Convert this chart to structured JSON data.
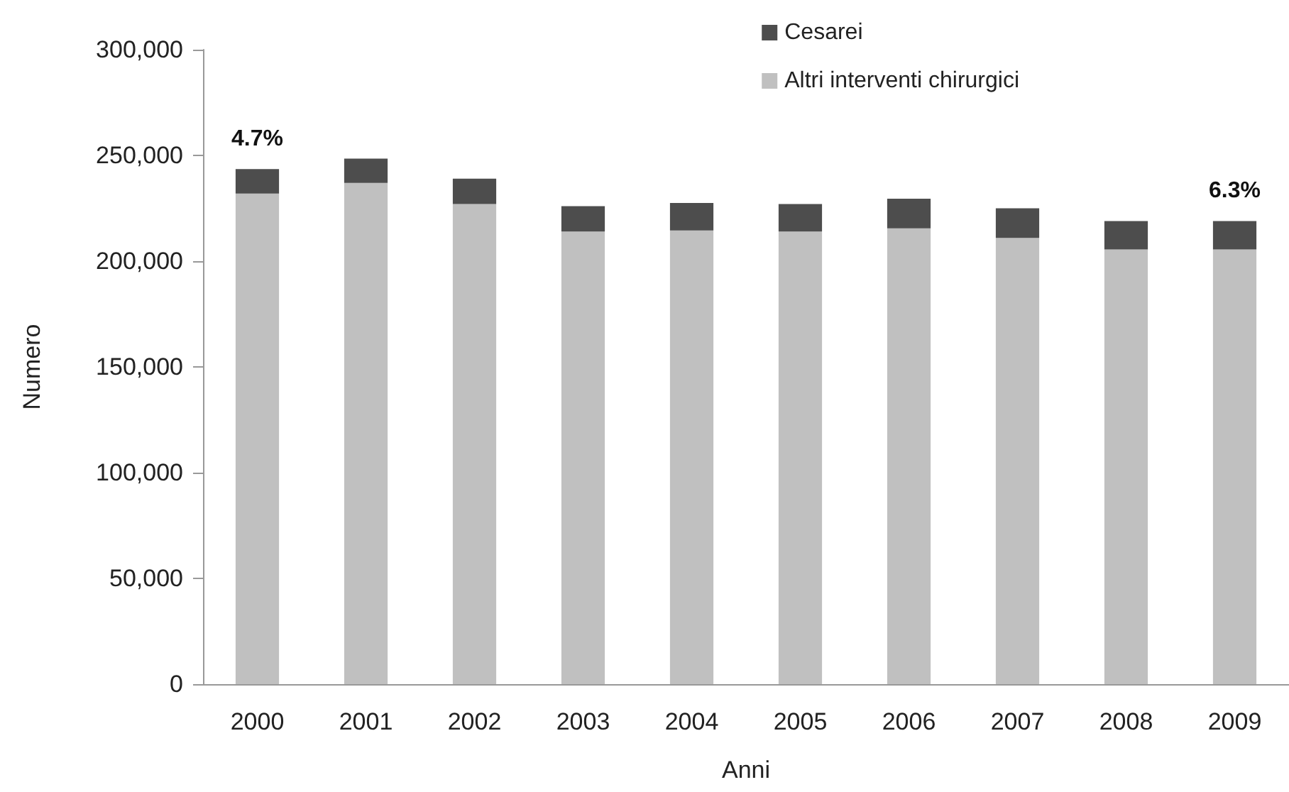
{
  "chart_data": {
    "type": "bar",
    "xlabel": "Anni",
    "ylabel": "Numero",
    "categories": [
      "2000",
      "2001",
      "2002",
      "2003",
      "2004",
      "2005",
      "2006",
      "2007",
      "2008",
      "2009"
    ],
    "series": [
      {
        "name": "Altri interventi chirurgici",
        "color": "#c0c0c0",
        "values": [
          232000,
          237000,
          227000,
          214000,
          214500,
          214000,
          215500,
          211000,
          205500,
          205500
        ]
      },
      {
        "name": "Cesarei",
        "color": "#4d4d4d",
        "values": [
          11500,
          11500,
          12000,
          12000,
          13000,
          13000,
          14000,
          14000,
          13500,
          13500
        ]
      }
    ],
    "stacked": true,
    "ylim": [
      0,
      300000
    ],
    "yticks": [
      0,
      {
        "value": 50000,
        "label": "50,000"
      },
      {
        "value": 100000,
        "label": "100,000"
      },
      {
        "value": 150000,
        "label": "150,000"
      },
      {
        "value": 200000,
        "label": "200,000"
      },
      {
        "value": 250000,
        "label": "250,000"
      },
      {
        "value": 300000,
        "label": "300,000"
      }
    ],
    "legend": "top right",
    "annotations": [
      {
        "text": "4.7%",
        "x": "2000",
        "y": 243500
      },
      {
        "text": "6.3%",
        "x": "2009",
        "y": 219000
      }
    ]
  }
}
